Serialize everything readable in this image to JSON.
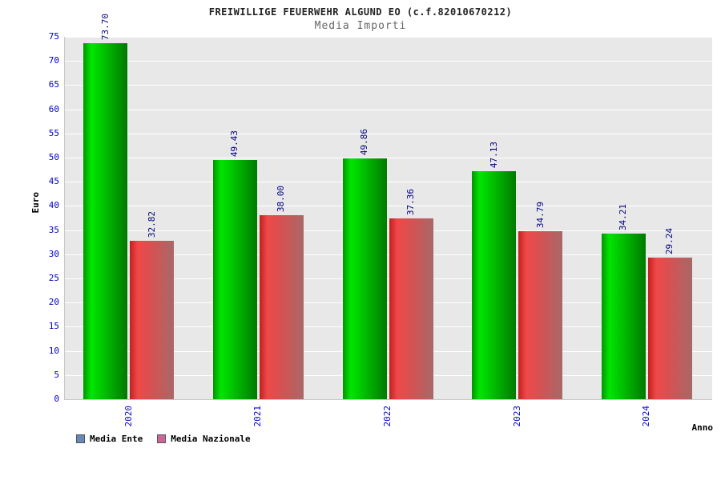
{
  "title": "FREIWILLIGE FEUERWEHR ALGUND EO (c.f.82010670212)",
  "subtitle": "Media Importi",
  "chart_data": {
    "type": "bar",
    "title": "Media Importi",
    "categories": [
      "2020",
      "2021",
      "2022",
      "2023",
      "2024"
    ],
    "series": [
      {
        "name": "Media Ente",
        "values": [
          73.7,
          49.43,
          49.86,
          47.13,
          34.21
        ],
        "labels": [
          "73.70",
          "49.43",
          "49.86",
          "47.13",
          "34.21"
        ],
        "bar_gradient": "linear-gradient(90deg,#009600 0%,#00e600 18%,#00c300 45%,#007a00 100%)",
        "legend_swatch": "#6688bb"
      },
      {
        "name": "Media Nazionale",
        "values": [
          32.82,
          38.0,
          37.36,
          34.79,
          29.24
        ],
        "labels": [
          "32.82",
          "38.00",
          "37.36",
          "34.79",
          "29.24"
        ],
        "bar_gradient": "linear-gradient(90deg,#c22020 0%,#f04848 18%,#d95050 45%,#a86868 100%)",
        "legend_swatch": "#cc6699"
      }
    ],
    "xlabel": "Anno",
    "ylabel": "Euro",
    "ylim": [
      0,
      75
    ],
    "ytick_step": 5,
    "grid": true,
    "legend_position": "bottom-left"
  },
  "colors": {
    "tick_label": "#0000cc",
    "category_label": "#0000cc",
    "value_label": "#000080",
    "plot_bg": "#e8e8e8",
    "gridline": "#ffffff",
    "title": "#222222",
    "subtitle": "#666666"
  }
}
